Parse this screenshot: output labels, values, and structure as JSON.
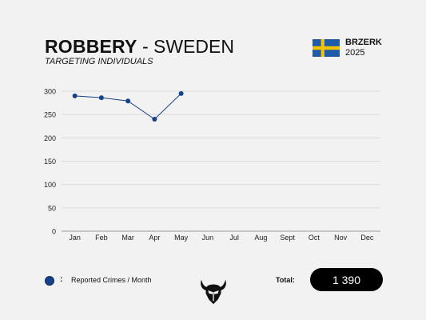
{
  "header": {
    "title_bold": "ROBBERY",
    "title_sep": "-",
    "title_country": "SWEDEN",
    "subtitle": "TARGETING INDIVIDUALS",
    "brand": "BRZERK",
    "year": "2025",
    "flag_icon": "sweden-flag-icon",
    "flag_colors": {
      "blue": "#1f5ba8",
      "yellow": "#f5c400"
    }
  },
  "chart_data": {
    "type": "line",
    "categories": [
      "Jan",
      "Feb",
      "Mar",
      "Apr",
      "May",
      "Jun",
      "Jul",
      "Aug",
      "Sept",
      "Oct",
      "Nov",
      "Dec"
    ],
    "series": [
      {
        "name": "Reported Crimes / Month",
        "values": [
          290,
          286,
          279,
          240,
          295,
          null,
          null,
          null,
          null,
          null,
          null,
          null
        ],
        "color": "#17428a"
      }
    ],
    "yticks": [
      0,
      50,
      100,
      150,
      200,
      250,
      300
    ],
    "ylim": [
      0,
      300
    ],
    "grid": true,
    "legend": "bottom-left"
  },
  "legend": {
    "label": "Reported Crimes / Month",
    "colon": ":"
  },
  "footer": {
    "logo_icon": "viking-helmet-icon",
    "total_label": "Total:",
    "total_value": "1 390"
  }
}
